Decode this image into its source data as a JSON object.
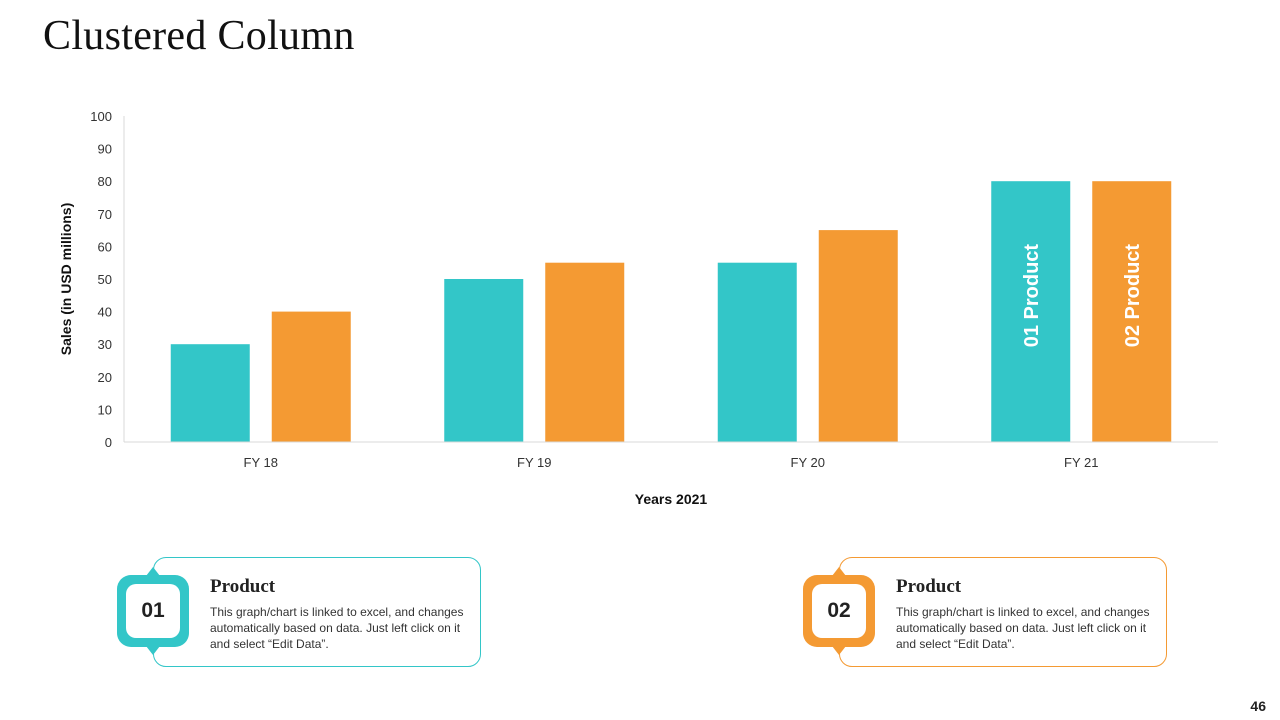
{
  "title": "Clustered Column",
  "page_number": "46",
  "colors": {
    "product1": "#33c6c8",
    "product2": "#f49a33"
  },
  "chart_data": {
    "type": "bar",
    "categories": [
      "FY 18",
      "FY 19",
      "FY 20",
      "FY 21"
    ],
    "series": [
      {
        "name": "01 Product",
        "values": [
          30,
          50,
          55,
          80
        ]
      },
      {
        "name": "02 Product",
        "values": [
          40,
          55,
          65,
          80
        ]
      }
    ],
    "xlabel": "Years 2021",
    "ylabel": "Sales (in USD millions)",
    "ylim": [
      0,
      100
    ],
    "yticks": [
      0,
      10,
      20,
      30,
      40,
      50,
      60,
      70,
      80,
      90,
      100
    ],
    "grid": false,
    "legend": "inside-last-bars"
  },
  "cards": [
    {
      "badge": "01",
      "title": "Product",
      "text": "This graph/chart is linked to excel, and changes automatically based on data. Just left click on it and select “Edit Data”."
    },
    {
      "badge": "02",
      "title": "Product",
      "text": "This graph/chart is linked to excel, and changes automatically based on data. Just left click on it and select “Edit Data”."
    }
  ]
}
